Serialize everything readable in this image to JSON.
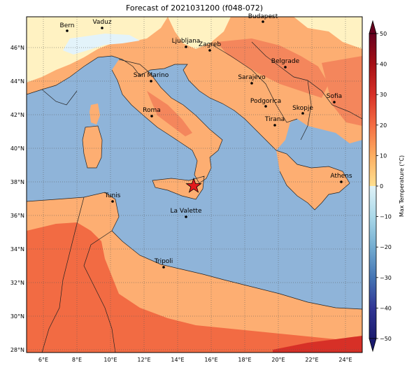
{
  "title": "Forecast of 2021031200 (f048-072)",
  "lon_ticks": [
    "6°E",
    "8°E",
    "10°E",
    "12°E",
    "14°E",
    "16°E",
    "18°E",
    "20°E",
    "22°E",
    "24°E"
  ],
  "lat_ticks": [
    "28°N",
    "30°N",
    "32°N",
    "34°N",
    "36°N",
    "38°N",
    "40°N",
    "42°N",
    "44°N",
    "46°N"
  ],
  "colorbar": {
    "label": "Max Temperature (°C)",
    "ticks": [
      "50",
      "40",
      "30",
      "20",
      "10",
      "0",
      "−10",
      "−20",
      "−30",
      "−40",
      "−50"
    ],
    "colors": [
      "#67001f",
      "#b2182b",
      "#d6604d",
      "#f4a582",
      "#fddbc7",
      "#f7f7f7",
      "#d1e5f0",
      "#92c5de",
      "#4393c3",
      "#2166ac",
      "#053061"
    ]
  },
  "cities": [
    {
      "name": "Bern"
    },
    {
      "name": "Vaduz"
    },
    {
      "name": "Budapest"
    },
    {
      "name": "Ljubljana"
    },
    {
      "name": "Zagreb"
    },
    {
      "name": "Belgrade"
    },
    {
      "name": "San Marino"
    },
    {
      "name": "Sarajevo"
    },
    {
      "name": "Sofia"
    },
    {
      "name": "Podgorica"
    },
    {
      "name": "Skopje"
    },
    {
      "name": "Roma"
    },
    {
      "name": "Tirana"
    },
    {
      "name": "Athens"
    },
    {
      "name": "Tunis"
    },
    {
      "name": "La Valette"
    },
    {
      "name": "Tripoli"
    }
  ],
  "marker": "star-marker"
}
